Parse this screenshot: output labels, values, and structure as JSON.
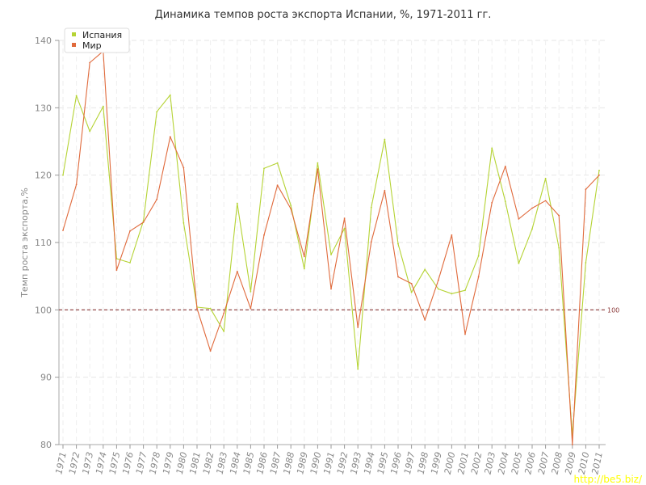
{
  "chart_data": {
    "type": "line",
    "title": "Динамика темпов роста экспорта Испании, %, 1971-2011 гг.",
    "xlabel": "",
    "ylabel": "Темп роста экспорта,%",
    "ylim": [
      80,
      140
    ],
    "yticks": [
      80,
      90,
      100,
      110,
      120,
      130,
      140
    ],
    "grid": true,
    "legend_position": "top-left",
    "categories": [
      "1971",
      "1972",
      "1973",
      "1974",
      "1975",
      "1976",
      "1977",
      "1978",
      "1979",
      "1980",
      "1981",
      "1982",
      "1983",
      "1984",
      "1985",
      "1986",
      "1987",
      "1988",
      "1989",
      "1990",
      "1991",
      "1992",
      "1993",
      "1994",
      "1995",
      "1996",
      "1997",
      "1998",
      "1999",
      "2000",
      "2001",
      "2002",
      "2003",
      "2004",
      "2005",
      "2006",
      "2007",
      "2008",
      "2009",
      "2010",
      "2011"
    ],
    "series": [
      {
        "name": "Испания",
        "color": "#b5d334",
        "values": [
          120.0,
          131.8,
          126.5,
          130.2,
          107.6,
          107.0,
          113.2,
          129.4,
          131.9,
          112.9,
          100.4,
          100.2,
          96.8,
          115.8,
          102.7,
          121.0,
          121.8,
          115.5,
          106.1,
          121.8,
          108.2,
          112.1,
          91.2,
          115.2,
          125.3,
          109.8,
          102.6,
          106.0,
          103.1,
          102.4,
          102.9,
          108.0,
          124.0,
          116.1,
          106.9,
          112.0,
          119.5,
          109.2,
          81.4,
          107.0,
          120.7
        ]
      },
      {
        "name": "Мир",
        "color": "#e06a3c",
        "values": [
          111.8,
          118.6,
          136.7,
          138.4,
          105.9,
          111.7,
          113.0,
          116.4,
          125.7,
          121.1,
          100.2,
          93.9,
          99.5,
          105.7,
          100.2,
          111.1,
          118.5,
          115.0,
          107.9,
          120.9,
          103.1,
          113.6,
          97.4,
          110.1,
          117.7,
          104.9,
          103.9,
          98.5,
          104.4,
          111.1,
          96.4,
          104.9,
          115.9,
          121.3,
          113.5,
          115.1,
          116.2,
          114.0,
          80.0,
          117.9,
          120.0
        ]
      }
    ],
    "reference_line": {
      "value": 100,
      "label": "100",
      "color": "#8b3a3a"
    }
  },
  "watermark": "http://be5.biz/"
}
